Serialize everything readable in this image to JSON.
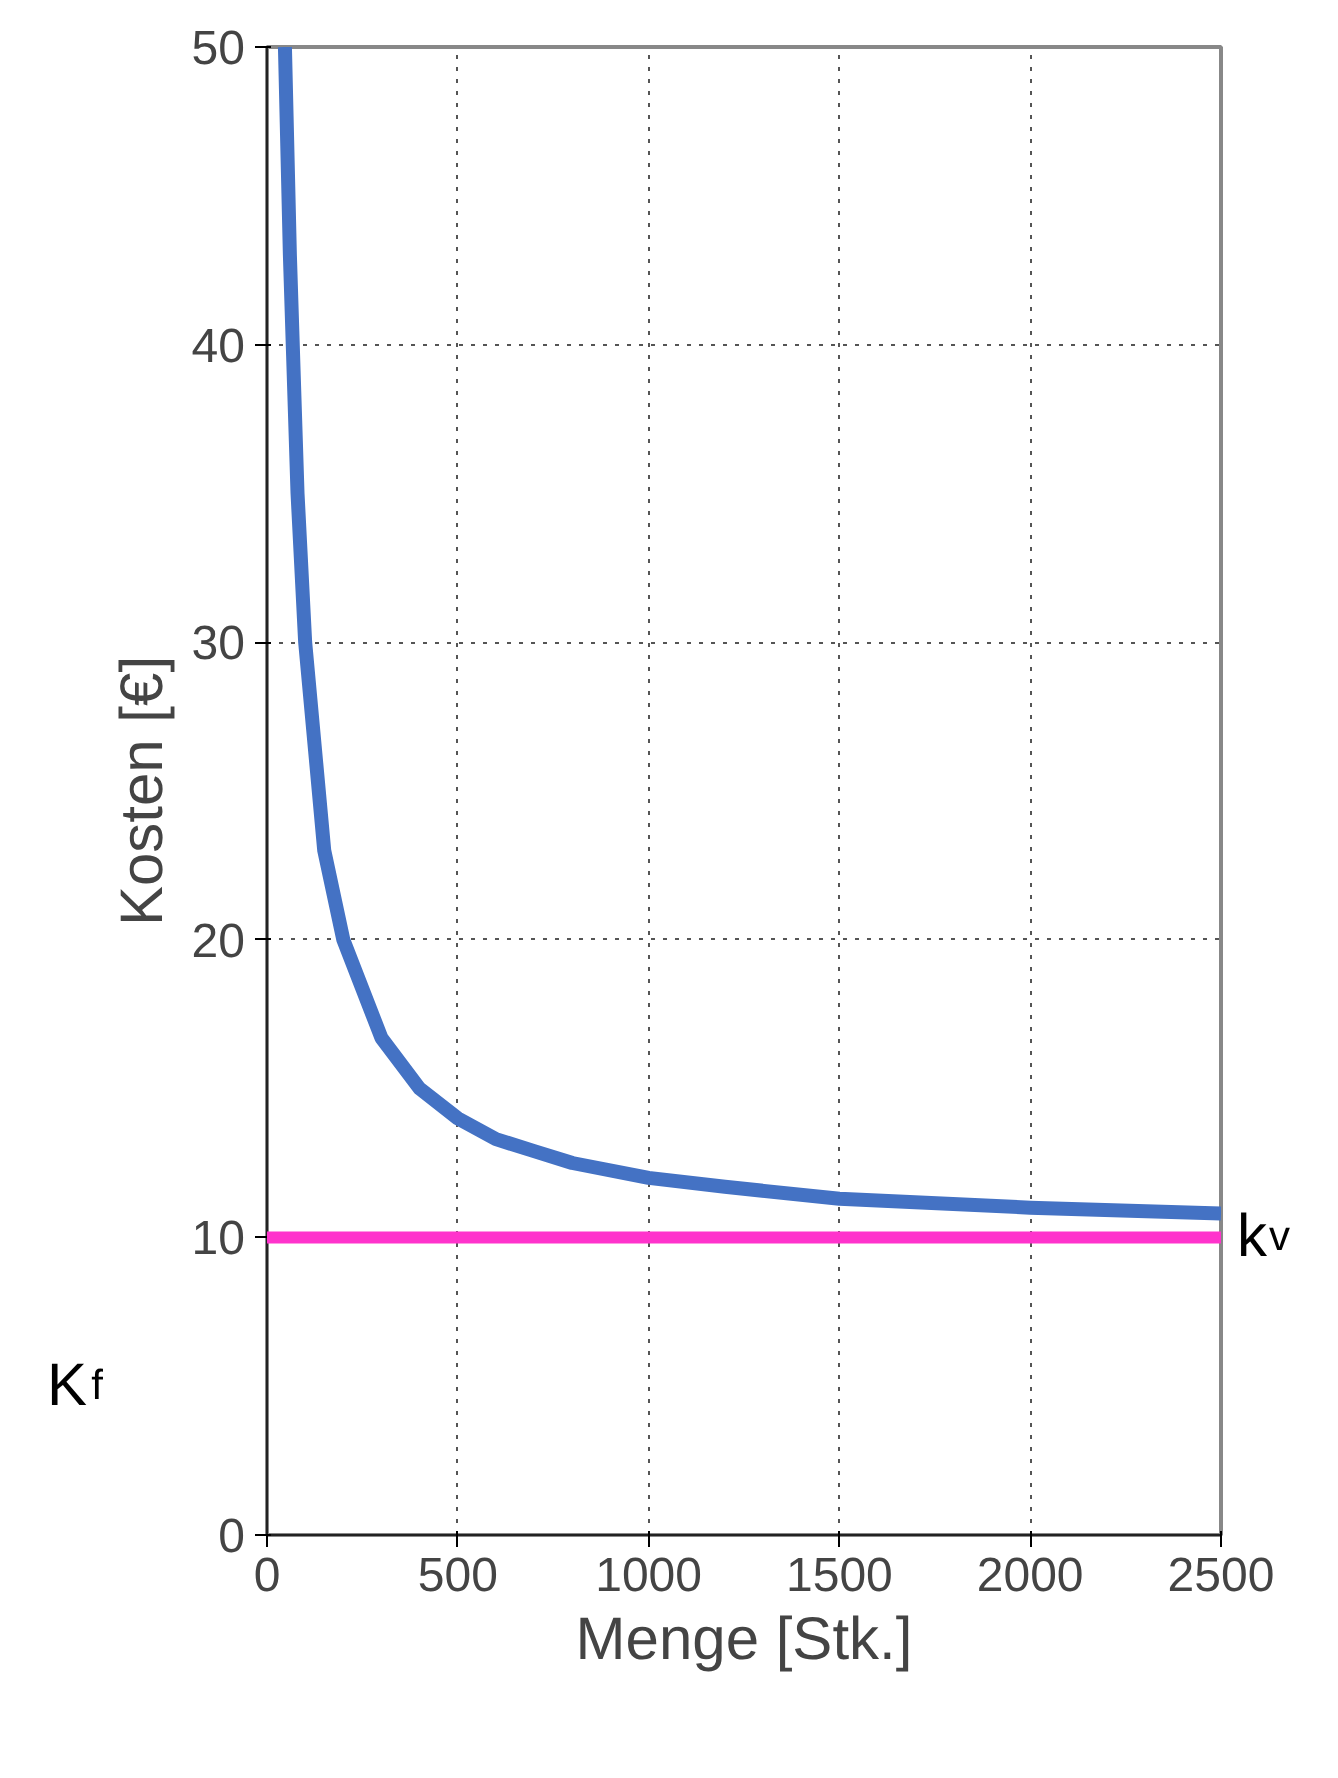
{
  "chart_data": {
    "type": "line",
    "xlabel": "Menge [Stk.]",
    "ylabel": "Kosten [€]",
    "x": [
      47,
      60,
      80,
      100,
      150,
      200,
      300,
      400,
      500,
      600,
      700,
      800,
      1000,
      1200,
      1500,
      2000,
      2500
    ],
    "series": [
      {
        "color": "#4472c4",
        "values": [
          50,
          43,
          35,
          30,
          23,
          20,
          16.7,
          15,
          14,
          13.3,
          12.9,
          12.5,
          12,
          11.7,
          11.3,
          11,
          10.8
        ]
      }
    ],
    "xlim": [
      0,
      2500
    ],
    "ylim": [
      0,
      50
    ],
    "xticks": [
      0,
      500,
      1000,
      1500,
      2000,
      2500
    ],
    "yticks": [
      0,
      10,
      20,
      30,
      40,
      50
    ],
    "grid": true,
    "line_style": "solid",
    "marker": "none",
    "ref_lines": [
      {
        "axis": "y",
        "value": 10,
        "label": "k$_{v}$",
        "color": "#ff33cc"
      }
    ],
    "annotations": [
      {
        "text": "K$_{f}$"
      }
    ]
  }
}
